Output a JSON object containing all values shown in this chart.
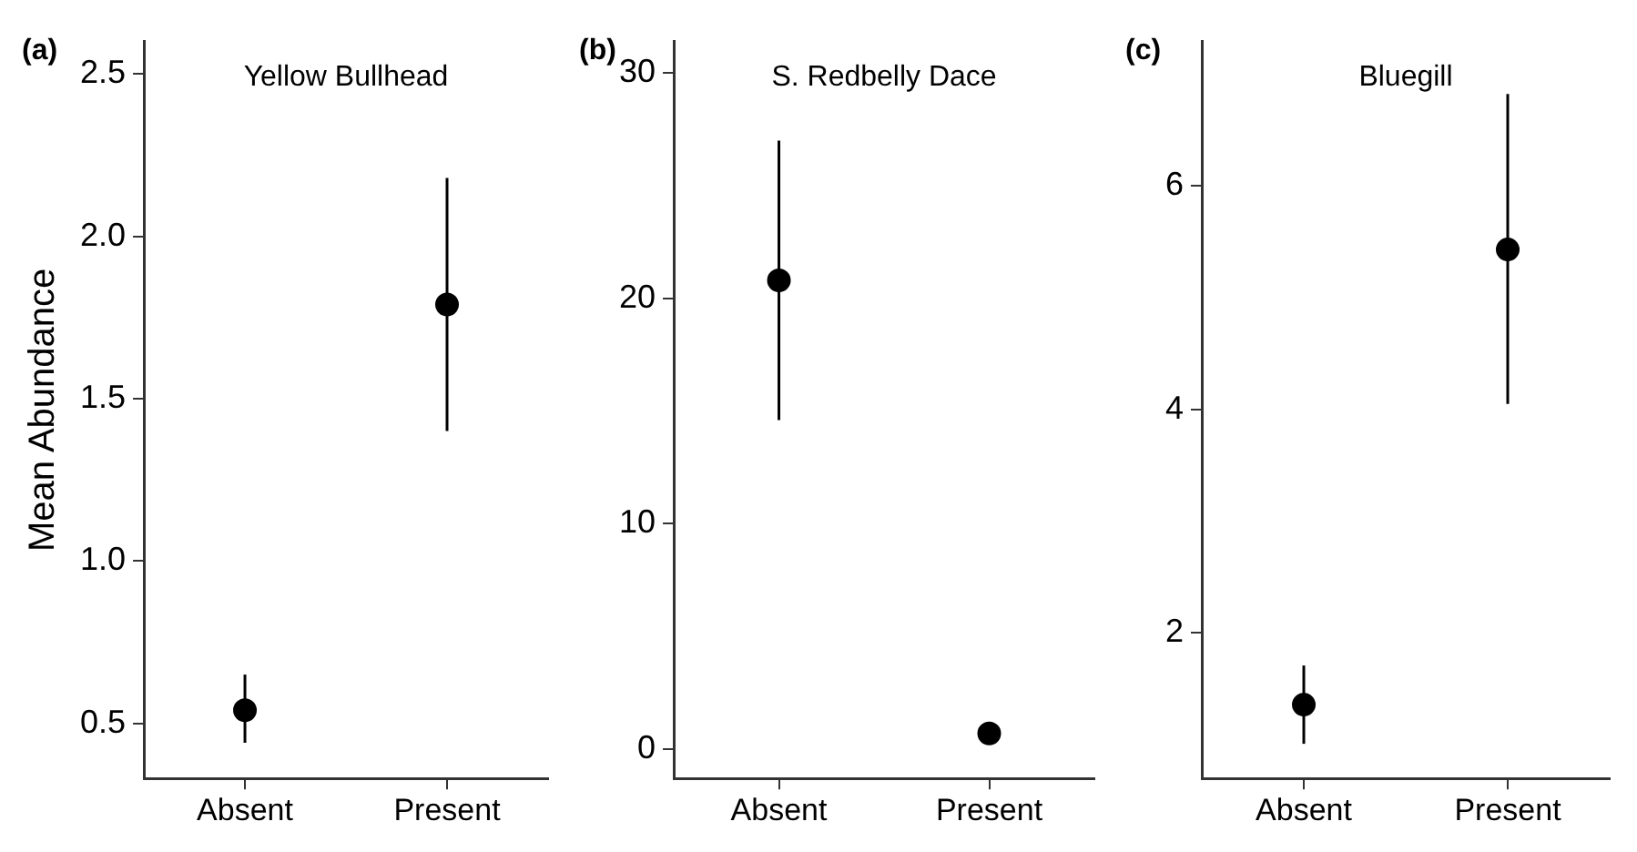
{
  "chart_data": [
    {
      "type": "scatter",
      "title": "Yellow Bullhead",
      "ylabel": "Mean Abundance",
      "annotations": [
        "(a)"
      ],
      "categories": [
        "Absent",
        "Present"
      ],
      "series": [
        {
          "color": "#000000",
          "values": [
            0.54,
            1.79
          ],
          "errors": [
            [
              0.44,
              0.65
            ],
            [
              1.4,
              2.18
            ]
          ]
        }
      ],
      "ylim": [
        0.33,
        2.6
      ],
      "yticks": [
        0.5,
        {
          "value": 1,
          "label": "1.0"
        },
        1.5,
        {
          "value": 2,
          "label": "2.0"
        },
        2.5
      ],
      "marker": "circle"
    },
    {
      "type": "scatter",
      "title": "S. Redbelly Dace",
      "annotations": [
        "(b)"
      ],
      "categories": [
        "Absent",
        "Present"
      ],
      "series": [
        {
          "color": "#000000",
          "values": [
            20.8,
            0.7
          ],
          "errors": [
            [
              14.6,
              27.0
            ],
            [
              0.4,
              1.0
            ]
          ]
        }
      ],
      "ylim": [
        -1.3,
        31.4
      ],
      "yticks": [
        0,
        10,
        20,
        30
      ],
      "marker": "circle"
    },
    {
      "type": "scatter",
      "title": "Bluegill",
      "annotations": [
        "(c)"
      ],
      "categories": [
        "Absent",
        "Present"
      ],
      "series": [
        {
          "color": "#000000",
          "values": [
            1.36,
            5.43
          ],
          "errors": [
            [
              1.01,
              1.71
            ],
            [
              4.05,
              6.82
            ]
          ]
        }
      ],
      "ylim": [
        0.7,
        7.29
      ],
      "yticks": [
        2,
        4,
        6
      ],
      "marker": "circle"
    }
  ]
}
